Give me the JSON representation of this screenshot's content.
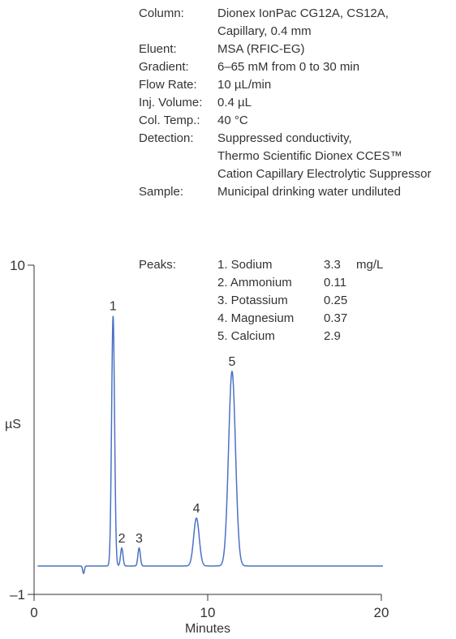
{
  "conditions": [
    {
      "label": "Column:",
      "lines": [
        "Dionex IonPac CG12A, CS12A,",
        "Capillary, 0.4 mm"
      ]
    },
    {
      "label": "Eluent:",
      "lines": [
        "MSA (RFIC-EG)"
      ]
    },
    {
      "label": "Gradient:",
      "lines": [
        "6–65 mM from 0 to 30 min"
      ]
    },
    {
      "label": "Flow Rate:",
      "lines": [
        "10 µL/min"
      ]
    },
    {
      "label": "Inj. Volume:",
      "lines": [
        "0.4 µL"
      ]
    },
    {
      "label": "Col. Temp.:",
      "lines": [
        "40 °C"
      ]
    },
    {
      "label": "Detection:",
      "lines": [
        "Suppressed conductivity,",
        "Thermo Scientific Dionex CCES™",
        "Cation Capillary Electrolytic Suppressor"
      ]
    },
    {
      "label": "Sample:",
      "lines": [
        "Municipal drinking water undiluted"
      ]
    }
  ],
  "peaks": {
    "label": "Peaks:",
    "unit": "mg/L",
    "items": [
      {
        "name": "1. Sodium",
        "conc": "3.3"
      },
      {
        "name": "2. Ammonium",
        "conc": "0.11"
      },
      {
        "name": "3. Potassium",
        "conc": "0.25"
      },
      {
        "name": "4. Magnesium",
        "conc": "0.37"
      },
      {
        "name": "5. Calcium",
        "conc": "2.9"
      }
    ]
  },
  "chart_data": {
    "type": "line",
    "title": "",
    "xlabel": "Minutes",
    "ylabel": "µS",
    "xlim": [
      0,
      20
    ],
    "ylim": [
      -1,
      10
    ],
    "x_ticks": [
      "0",
      "10",
      "20"
    ],
    "y_ticks": [
      "10",
      "–1"
    ],
    "baseline": -0.05,
    "line_color": "#4a72c4",
    "dip": {
      "x": 2.85,
      "y": -0.3
    },
    "peaks": [
      {
        "label": "1",
        "x": 4.55,
        "y": 8.3
      },
      {
        "label": "2",
        "x": 5.05,
        "y": 0.55
      },
      {
        "label": "3",
        "x": 6.05,
        "y": 0.55
      },
      {
        "label": "4",
        "x": 9.35,
        "y": 1.55
      },
      {
        "label": "5",
        "x": 11.4,
        "y": 6.45
      }
    ]
  }
}
